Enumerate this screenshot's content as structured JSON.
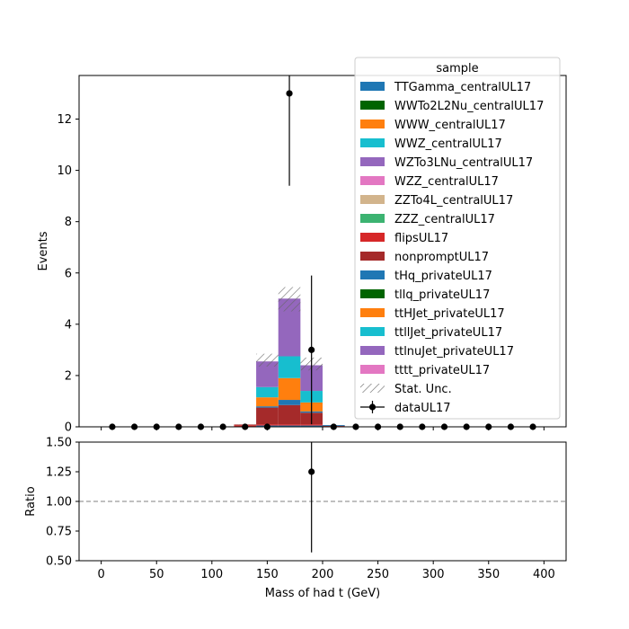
{
  "chart_data": [
    {
      "type": "bar",
      "stacked": true,
      "ylabel": "Events",
      "xlim": [
        -20,
        420
      ],
      "ylim": [
        0,
        13.7
      ],
      "yticks": [
        0,
        2,
        4,
        6,
        8,
        10,
        12
      ],
      "bin_edges": [
        120,
        140,
        160,
        180,
        200,
        220
      ],
      "series": [
        {
          "name": "TTGamma_centralUL17",
          "color": "#1f77b4",
          "values": [
            0,
            0.05,
            0.05,
            0.05,
            0
          ]
        },
        {
          "name": "WWTo2L2Nu_centralUL17",
          "color": "#006400",
          "values": [
            0,
            0,
            0,
            0,
            0
          ]
        },
        {
          "name": "WWW_centralUL17",
          "color": "#ff7f0e",
          "values": [
            0,
            0,
            0,
            0,
            0
          ]
        },
        {
          "name": "WWZ_centralUL17",
          "color": "#17becf",
          "values": [
            0,
            0,
            0,
            0,
            0
          ]
        },
        {
          "name": "WZTo3LNu_centralUL17",
          "color": "#9467bd",
          "values": [
            0,
            0,
            0,
            0,
            0
          ]
        },
        {
          "name": "WZZ_centralUL17",
          "color": "#e377c2",
          "values": [
            0,
            0,
            0,
            0,
            0
          ]
        },
        {
          "name": "ZZTo4L_centralUL17",
          "color": "#d2b48c",
          "values": [
            0,
            0,
            0,
            0,
            0
          ]
        },
        {
          "name": "ZZZ_centralUL17",
          "color": "#3cb371",
          "values": [
            0,
            0,
            0,
            0,
            0
          ]
        },
        {
          "name": "flipsUL17",
          "color": "#d62728",
          "values": [
            0.06,
            0.05,
            0.05,
            0.05,
            0.02
          ]
        },
        {
          "name": "nonpromptUL17",
          "color": "#a52a2a",
          "values": [
            0.03,
            0.65,
            0.75,
            0.45,
            0.02
          ]
        },
        {
          "name": "tHq_privateUL17",
          "color": "#1f77b4",
          "values": [
            0,
            0.05,
            0.2,
            0.05,
            0.03
          ]
        },
        {
          "name": "tllq_privateUL17",
          "color": "#006400",
          "values": [
            0,
            0,
            0,
            0,
            0
          ]
        },
        {
          "name": "ttHJet_privateUL17",
          "color": "#ff7f0e",
          "values": [
            0,
            0.35,
            0.85,
            0.35,
            0
          ]
        },
        {
          "name": "ttllJet_privateUL17",
          "color": "#17becf",
          "values": [
            0,
            0.4,
            0.85,
            0.45,
            0
          ]
        },
        {
          "name": "ttlnuJet_privateUL17",
          "color": "#9467bd",
          "values": [
            0,
            1.0,
            2.25,
            1.0,
            0
          ]
        },
        {
          "name": "tttt_privateUL17",
          "color": "#e377c2",
          "values": [
            0,
            0,
            0,
            0,
            0
          ]
        }
      ],
      "stat_unc": {
        "name": "Stat. Unc.",
        "low": [
          0.09,
          2.35,
          4.5,
          2.2,
          0.07
        ],
        "high": [
          0.09,
          2.85,
          5.45,
          2.7,
          0.07
        ]
      },
      "data": {
        "name": "dataUL17",
        "x": [
          10,
          30,
          50,
          70,
          90,
          110,
          130,
          150,
          170,
          190,
          210,
          230,
          250,
          270,
          290,
          310,
          330,
          350,
          370,
          390
        ],
        "y": [
          0,
          0,
          0,
          0,
          0,
          0,
          0,
          0,
          13,
          3,
          0,
          0,
          0,
          0,
          0,
          0,
          0,
          0,
          0,
          0
        ],
        "err": [
          0,
          0,
          0,
          0,
          0,
          0,
          0,
          0,
          3.6,
          2.9,
          0,
          0,
          0,
          0,
          0,
          0,
          0,
          0,
          0,
          0
        ]
      },
      "legend": {
        "title": "sample",
        "placement": "top-right"
      }
    },
    {
      "type": "scatter",
      "xlabel": "Mass of had t (GeV)",
      "ylabel": "Ratio",
      "xlim": [
        -20,
        420
      ],
      "ylim": [
        0.5,
        1.5
      ],
      "xticks": [
        0,
        50,
        100,
        150,
        200,
        250,
        300,
        350,
        400
      ],
      "yticks": [
        0.5,
        0.75,
        1.0,
        1.25,
        1.5
      ],
      "ytick_labels": [
        "0.50",
        "0.75",
        "1.00",
        "1.25",
        "1.50"
      ],
      "reference_line": 1.0,
      "points": [
        {
          "x": 190,
          "y": 1.25,
          "err_low": 0.68,
          "err_high": 0.6
        }
      ]
    }
  ]
}
